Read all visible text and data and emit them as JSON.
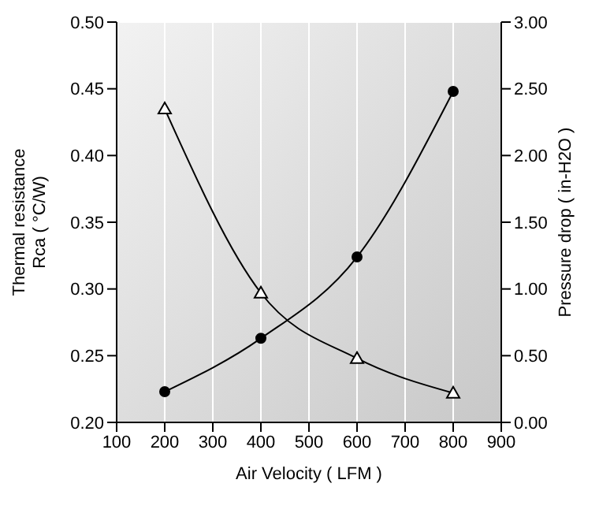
{
  "chart_data": {
    "type": "line",
    "x": [
      200,
      400,
      600,
      800
    ],
    "series": [
      {
        "color": "#000000",
        "values": [
          0.435,
          0.297,
          0.248,
          0.222
        ],
        "marker": "triangle"
      },
      {
        "color": "#000000",
        "values": [
          0.23,
          0.63,
          1.24,
          2.48
        ],
        "marker": "circle",
        "axis": "y2"
      }
    ],
    "xlabel": "Air Velocity ( LFM )",
    "ylabel": "Thermal resistance\nRca ( °C/W)",
    "y2label": "Pressure drop ( in-H2O )",
    "xlim": [
      100,
      900
    ],
    "xticks": [
      100,
      200,
      300,
      400,
      500,
      600,
      700,
      800,
      900
    ],
    "ylim": [
      0.2,
      0.5
    ],
    "yticks": [
      {
        "value": 0.2,
        "label": "0.20"
      },
      0.25,
      {
        "value": 0.3,
        "label": "0.30"
      },
      0.35,
      {
        "value": 0.4,
        "label": "0.40"
      },
      0.45,
      {
        "value": 0.5,
        "label": "0.50"
      }
    ],
    "y2lim": [
      0,
      3
    ],
    "y2ticks": [
      {
        "value": 0,
        "label": "0.00"
      },
      {
        "value": 0.5,
        "label": "0.50"
      },
      {
        "value": 1,
        "label": "1.00"
      },
      {
        "value": 1.5,
        "label": "1.50"
      },
      {
        "value": 2,
        "label": "2.00"
      },
      {
        "value": 2.5,
        "label": "2.50"
      },
      {
        "value": 3,
        "label": "3.00"
      }
    ],
    "grid": true,
    "line_style": "solid"
  }
}
